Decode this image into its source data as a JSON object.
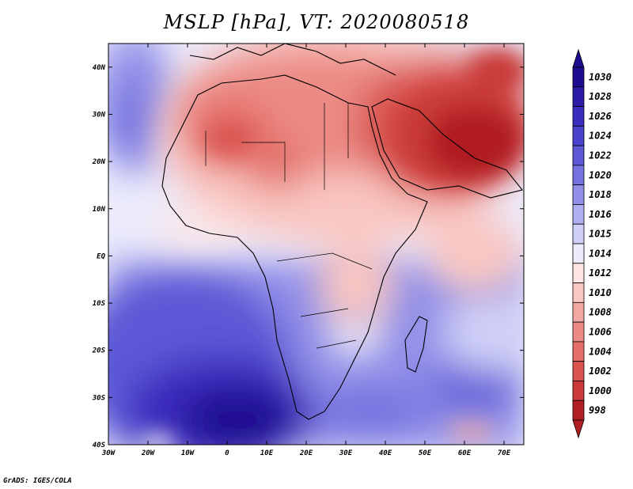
{
  "title": "MSLP [hPa], VT: 2020080518",
  "footer": "GrADS: IGES/COLA",
  "map": {
    "lon_range": [
      -30,
      75
    ],
    "lat_range": [
      -40,
      45
    ],
    "x_ticks": [
      {
        "lon": -30,
        "label": "30W"
      },
      {
        "lon": -20,
        "label": "20W"
      },
      {
        "lon": -10,
        "label": "10W"
      },
      {
        "lon": 0,
        "label": "0"
      },
      {
        "lon": 10,
        "label": "10E"
      },
      {
        "lon": 20,
        "label": "20E"
      },
      {
        "lon": 30,
        "label": "30E"
      },
      {
        "lon": 40,
        "label": "40E"
      },
      {
        "lon": 50,
        "label": "50E"
      },
      {
        "lon": 60,
        "label": "60E"
      },
      {
        "lon": 70,
        "label": "70E"
      }
    ],
    "y_ticks": [
      {
        "lat": 40,
        "label": "40N"
      },
      {
        "lat": 30,
        "label": "30N"
      },
      {
        "lat": 20,
        "label": "20N"
      },
      {
        "lat": 10,
        "label": "10N"
      },
      {
        "lat": 0,
        "label": "EQ"
      },
      {
        "lat": -10,
        "label": "10S"
      },
      {
        "lat": -20,
        "label": "20S"
      },
      {
        "lat": -30,
        "label": "30S"
      },
      {
        "lat": -40,
        "label": "40S"
      }
    ]
  },
  "colorbar": {
    "levels": [
      {
        "label": "1030",
        "color": "#1d0c8f"
      },
      {
        "label": "1028",
        "color": "#2b1aa6"
      },
      {
        "label": "1026",
        "color": "#3a2cbd"
      },
      {
        "label": "1024",
        "color": "#4a41cc"
      },
      {
        "label": "1022",
        "color": "#5d58d6"
      },
      {
        "label": "1020",
        "color": "#7472df"
      },
      {
        "label": "1018",
        "color": "#918fe8"
      },
      {
        "label": "1016",
        "color": "#b0b0f0"
      },
      {
        "label": "1015",
        "color": "#cfcff7"
      },
      {
        "label": "1014",
        "color": "#ececfc"
      },
      {
        "label": "1012",
        "color": "#fde6e4"
      },
      {
        "label": "1010",
        "color": "#f9c6c1"
      },
      {
        "label": "1008",
        "color": "#f3a9a3"
      },
      {
        "label": "1006",
        "color": "#ec8b85"
      },
      {
        "label": "1004",
        "color": "#e46f69"
      },
      {
        "label": "1002",
        "color": "#d9534f"
      },
      {
        "label": "1000",
        "color": "#c93a38"
      },
      {
        "label": "998",
        "color": "#b01f23"
      }
    ]
  }
}
